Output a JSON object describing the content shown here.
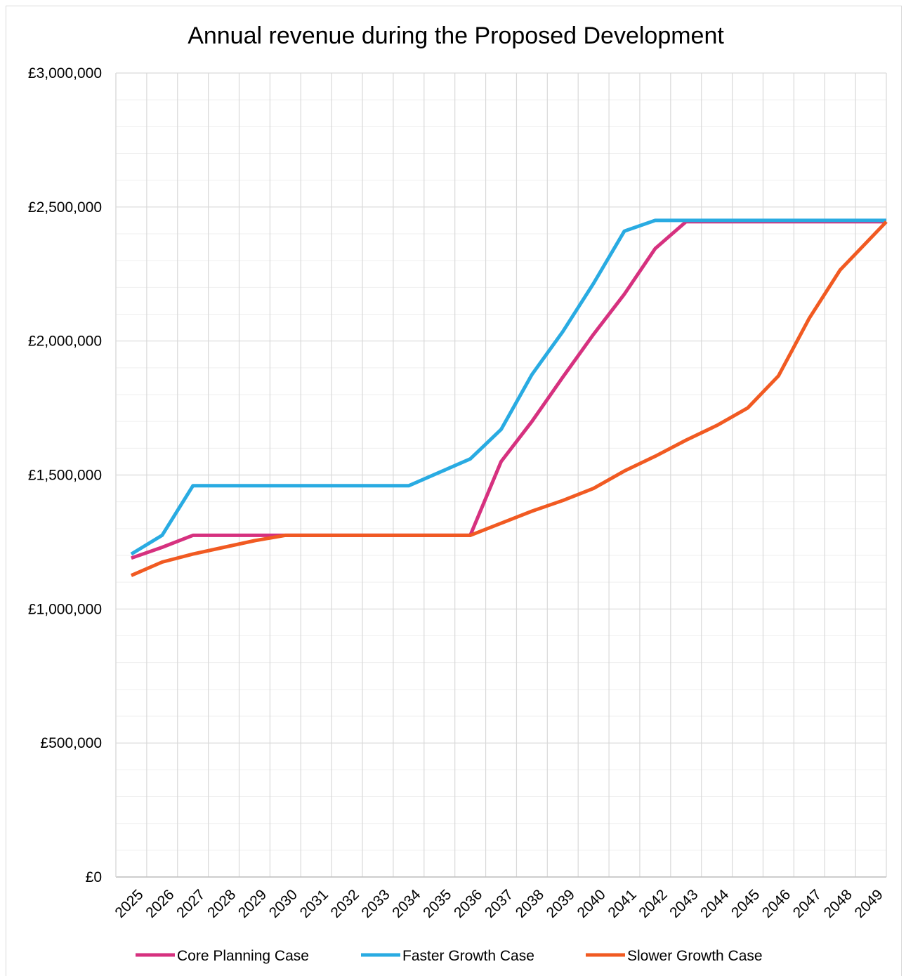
{
  "chart_data": {
    "type": "line",
    "title": "Annual revenue during the Proposed Development",
    "xlabel": "",
    "ylabel": "",
    "ylim": [
      0,
      3000000
    ],
    "y_tick_labels": [
      "£0",
      "£500,000",
      "£1,000,000",
      "£1,500,000",
      "£2,000,000",
      "£2,500,000",
      "£3,000,000"
    ],
    "y_ticks": [
      0,
      500000,
      1000000,
      1500000,
      2000000,
      2500000,
      3000000
    ],
    "grid": true,
    "legend_position": "bottom",
    "categories": [
      "2025",
      "2026",
      "2027",
      "2028",
      "2029",
      "2030",
      "2031",
      "2032",
      "2033",
      "2034",
      "2035",
      "2036",
      "2037",
      "2038",
      "2039",
      "2040",
      "2041",
      "2042",
      "2043",
      "2044",
      "2045",
      "2046",
      "2047",
      "2048",
      "2049"
    ],
    "series": [
      {
        "name": "Core Planning Case",
        "color": "#d6317f",
        "values": [
          1190000,
          1230000,
          1275000,
          1275000,
          1275000,
          1275000,
          1275000,
          1275000,
          1275000,
          1275000,
          1275000,
          1275000,
          1550000,
          1700000,
          1865000,
          2025000,
          2175000,
          2345000,
          2445000,
          2445000,
          2445000,
          2445000,
          2445000,
          2445000,
          2445000
        ]
      },
      {
        "name": "Faster Growth Case",
        "color": "#29abe2",
        "values": [
          1205000,
          1275000,
          1460000,
          1460000,
          1460000,
          1460000,
          1460000,
          1460000,
          1460000,
          1460000,
          1510000,
          1560000,
          1670000,
          1875000,
          2035000,
          2215000,
          2410000,
          2450000,
          2450000,
          2450000,
          2450000,
          2450000,
          2450000,
          2450000,
          2450000
        ]
      },
      {
        "name": "Slower Growth Case",
        "color": "#f15a22",
        "values": [
          1125000,
          1175000,
          1205000,
          1230000,
          1255000,
          1275000,
          1275000,
          1275000,
          1275000,
          1275000,
          1275000,
          1275000,
          1320000,
          1365000,
          1405000,
          1450000,
          1515000,
          1570000,
          1630000,
          1685000,
          1750000,
          1870000,
          2085000,
          2265000,
          2445000
        ]
      }
    ]
  }
}
